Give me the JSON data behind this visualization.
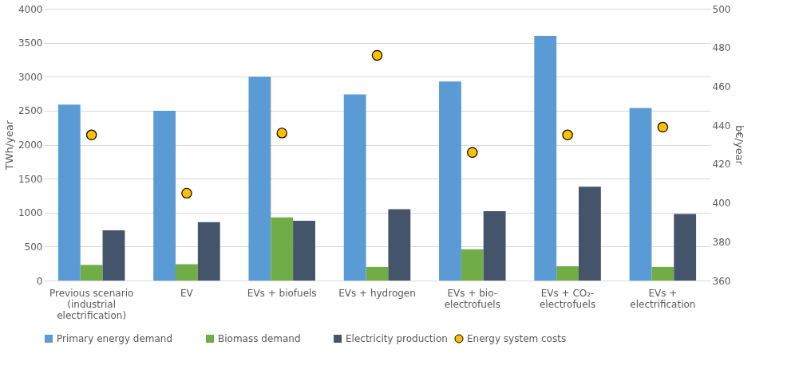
{
  "chart_data": {
    "type": "bar",
    "categories": [
      "Previous scenario (industrial electrification)",
      "EV",
      "EVs + biofuels",
      "EVs + hydrogen",
      "EVs + bio-electrofuels",
      "EVs + CO₂-electrofuels",
      "EVs + electrification"
    ],
    "series": [
      {
        "name": "Primary energy demand",
        "color": "#5b9bd5",
        "values": [
          2590,
          2500,
          3000,
          2740,
          2930,
          3600,
          2540
        ]
      },
      {
        "name": "Biomass demand",
        "color": "#70ad47",
        "values": [
          230,
          240,
          930,
          200,
          460,
          210,
          200
        ]
      },
      {
        "name": "Electricity production",
        "color": "#44546a",
        "values": [
          740,
          860,
          880,
          1050,
          1020,
          1380,
          980
        ]
      },
      {
        "name": "Energy system costs",
        "type": "scatter",
        "axis": "y2",
        "marker": "circle",
        "color": "#ffc000",
        "values": [
          435,
          405,
          436,
          476,
          426,
          435,
          439
        ]
      }
    ],
    "ylabel": "TWh/year",
    "y2label": "b€/year",
    "ylim": [
      0,
      4000
    ],
    "yticks": [
      0,
      500,
      1000,
      1500,
      2000,
      2500,
      3000,
      3500,
      4000
    ],
    "y2lim": [
      360,
      500
    ],
    "y2ticks": [
      360,
      380,
      400,
      420,
      440,
      460,
      480,
      500
    ],
    "grid": "y",
    "legend": "bottom"
  }
}
